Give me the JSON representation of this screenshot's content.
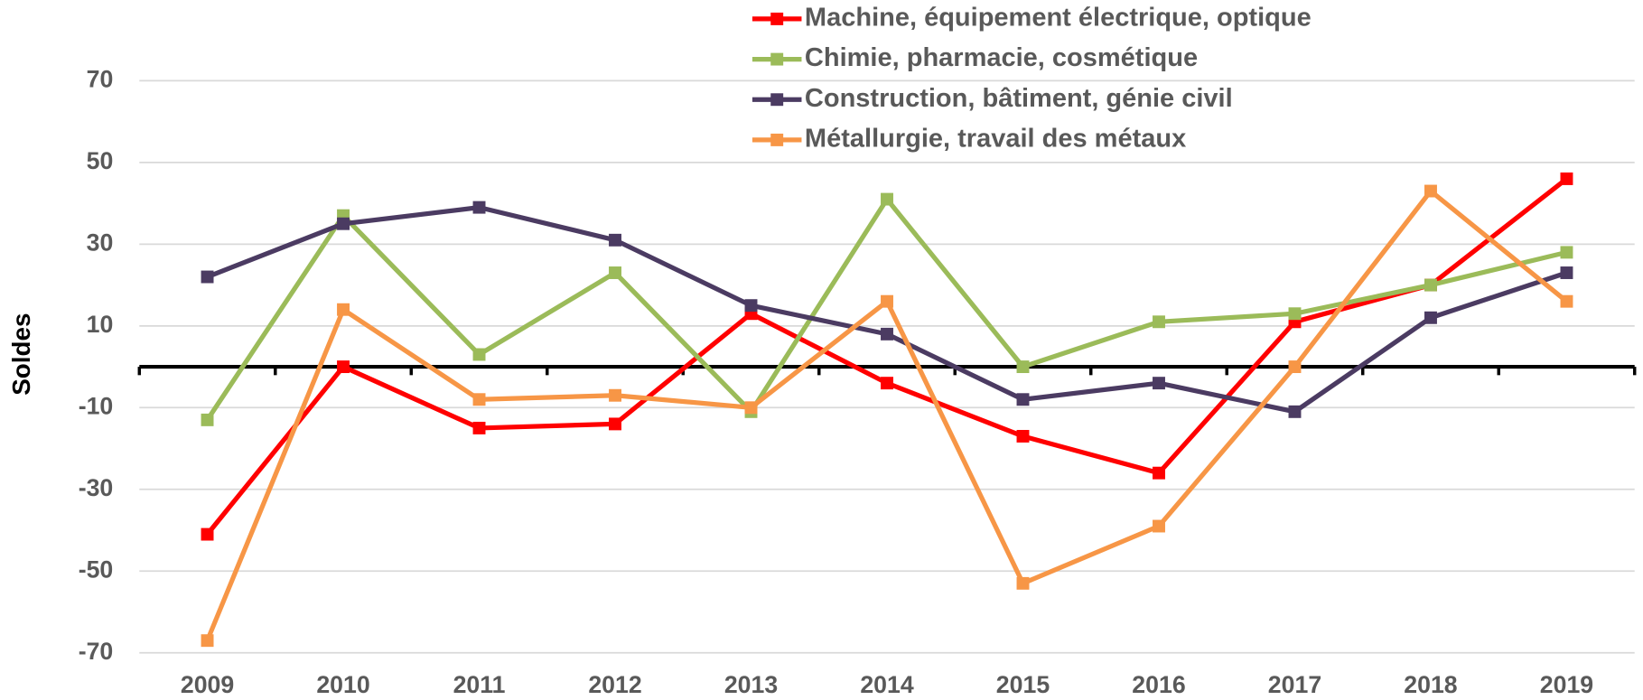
{
  "chart_data": {
    "type": "line",
    "y_label": "Soldes",
    "categories": [
      "2009",
      "2010",
      "2011",
      "2012",
      "2013",
      "2014",
      "2015",
      "2016",
      "2017",
      "2018",
      "2019"
    ],
    "series": [
      {
        "name": "Machine, équipement électrique, optique",
        "color": "#ff0000",
        "values": [
          -41,
          0,
          -15,
          -14,
          13,
          -4,
          -17,
          -26,
          11,
          20,
          46
        ]
      },
      {
        "name": "Chimie, pharmacie, cosmétique",
        "color": "#9bbb59",
        "values": [
          -13,
          37,
          3,
          23,
          -11,
          41,
          0,
          11,
          13,
          20,
          28
        ]
      },
      {
        "name": "Construction, bâtiment, génie civil",
        "color": "#4b3b62",
        "values": [
          22,
          35,
          39,
          31,
          15,
          8,
          -8,
          -4,
          -11,
          12,
          23
        ]
      },
      {
        "name": "Métallurgie, travail des métaux",
        "color": "#f79646",
        "values": [
          -67,
          14,
          -8,
          -7,
          -10,
          16,
          -53,
          -39,
          0,
          43,
          16
        ]
      }
    ],
    "ylim": [
      -70,
      85
    ],
    "yticks": [
      -70,
      -50,
      -30,
      -10,
      10,
      30,
      50,
      70
    ],
    "grid": true,
    "legend": "top"
  }
}
